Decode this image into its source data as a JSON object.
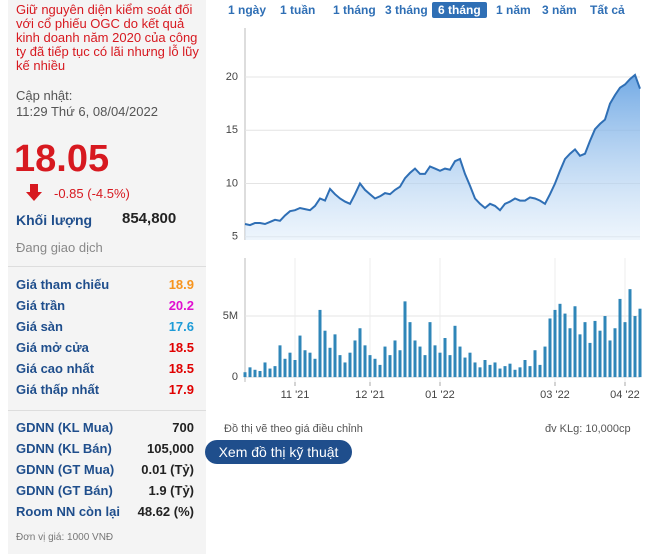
{
  "stock": {
    "headline": "Giữ nguyên diện kiểm soát đối với cổ phiếu OGC do kết quả kinh doanh năm 2020 của công ty đã tiếp tục có lãi nhưng lỗ lũy kế nhiều",
    "update_label": "Cập nhật:",
    "update_time": "11:29 Thứ 6, 08/04/2022",
    "price": "18.05",
    "change": "-0.85 (-4.5%)",
    "volume_label": "Khối lượng",
    "volume": "854,800",
    "status": "Đang giao dịch",
    "prices": [
      {
        "label": "Giá tham chiếu",
        "value": "18.9",
        "color": "#f7941d"
      },
      {
        "label": "Giá trần",
        "value": "20.2",
        "color": "#e010d0"
      },
      {
        "label": "Giá sàn",
        "value": "17.6",
        "color": "#1e9bd7"
      },
      {
        "label": "Giá mở cửa",
        "value": "18.5",
        "color": "#e00000"
      },
      {
        "label": "Giá cao nhất",
        "value": "18.5",
        "color": "#e00000"
      },
      {
        "label": "Giá thấp nhất",
        "value": "17.9",
        "color": "#e00000"
      }
    ],
    "foreign": [
      {
        "label": "GDNN (KL Mua)",
        "value": "700"
      },
      {
        "label": "GDNN (KL Bán)",
        "value": "105,000"
      },
      {
        "label": "GDNN (GT Mua)",
        "value": "0.01 (Tỷ)"
      },
      {
        "label": "GDNN (GT Bán)",
        "value": "1.9 (Tỷ)"
      },
      {
        "label": "Room NN còn lại",
        "value": "48.62 (%)"
      }
    ],
    "unit_note": "Đơn vị giá: 1000 VNĐ"
  },
  "tabs": {
    "items": [
      "1 ngày",
      "1 tuần",
      "1 tháng",
      "3 tháng",
      "6 tháng",
      "1 năm",
      "3 năm",
      "Tất cả"
    ],
    "active": 4
  },
  "notes": {
    "adjusted": "Đồ thị vẽ theo giá điều chỉnh",
    "volume_unit": "đv KLg: 10,000cp",
    "button": "Xem đồ thị kỹ thuật"
  },
  "chart_data": [
    {
      "type": "area",
      "color": "#2f6fb5",
      "values": [
        6.2,
        6.1,
        6.3,
        6.3,
        6.2,
        6.4,
        6.6,
        6.5,
        7.0,
        7.4,
        7.5,
        7.7,
        7.6,
        7.5,
        7.9,
        8.6,
        8.4,
        9.5,
        9.0,
        8.6,
        8.3,
        8.1,
        9.0,
        10.0,
        9.4,
        9.0,
        8.6,
        8.8,
        9.1,
        9.0,
        9.4,
        9.7,
        10.5,
        11.0,
        11.4,
        10.9,
        10.9,
        11.6,
        11.4,
        11.2,
        11.4,
        11.3,
        12.1,
        12.3,
        10.9,
        9.8,
        8.6,
        8.1,
        7.7,
        8.1,
        7.9,
        7.5,
        8.1,
        8.3,
        8.6,
        8.4,
        8.4,
        8.7,
        8.6,
        8.4,
        8.1,
        9.0,
        10.0,
        11.2,
        12.3,
        12.8,
        13.2,
        12.6,
        12.8,
        14.0,
        15.1,
        15.6,
        16.0,
        17.5,
        18.3,
        19.0,
        19.3,
        19.8,
        20.2,
        18.9
      ],
      "xlim": [
        0,
        79
      ],
      "ylim": [
        4.7,
        24.6
      ],
      "yticks": [
        5,
        10,
        15,
        20
      ],
      "grid": true
    },
    {
      "type": "bar",
      "color": "#2f86b8",
      "values": [
        400000,
        800000,
        600000,
        500000,
        1200000,
        700000,
        900000,
        2600000,
        1500000,
        2000000,
        1400000,
        3400000,
        2200000,
        2000000,
        1500000,
        5500000,
        3800000,
        2400000,
        3500000,
        1800000,
        1200000,
        2000000,
        3000000,
        4000000,
        2600000,
        1800000,
        1500000,
        1000000,
        2500000,
        1800000,
        3000000,
        2200000,
        6200000,
        4500000,
        3000000,
        2500000,
        1800000,
        4500000,
        2600000,
        2000000,
        3200000,
        1800000,
        4200000,
        2500000,
        1600000,
        2000000,
        1200000,
        800000,
        1400000,
        1000000,
        1200000,
        700000,
        900000,
        1100000,
        600000,
        800000,
        1400000,
        900000,
        2200000,
        1000000,
        2500000,
        4800000,
        5500000,
        6000000,
        5200000,
        4000000,
        5800000,
        3500000,
        4500000,
        2800000,
        4600000,
        3800000,
        5000000,
        3000000,
        4000000,
        6400000,
        4500000,
        7200000,
        5000000,
        5600000
      ],
      "xlim": [
        0,
        79
      ],
      "ylim": [
        -400000,
        9750000
      ],
      "yticks": [
        0,
        {
          "value": 5000000,
          "label": "5M"
        }
      ],
      "xticks": [
        {
          "value": 10,
          "label": "11 '21"
        },
        {
          "value": 25,
          "label": "12 '21"
        },
        {
          "value": 39,
          "label": "01 '22"
        },
        {
          "value": 62,
          "label": "03 '22"
        },
        {
          "value": 76,
          "label": "04 '22"
        }
      ],
      "grid": true
    }
  ]
}
